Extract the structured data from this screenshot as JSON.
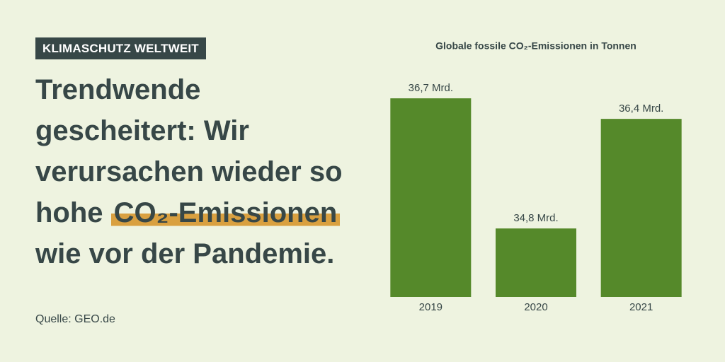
{
  "tag": "KLIMASCHUTZ WELTWEIT",
  "headline": {
    "lines": [
      "Trendwende",
      "gescheitert: Wir",
      "verursachen wieder so",
      {
        "text": "hohe",
        "highlight": "CO₂-Emissionen"
      },
      "wie vor der Pandemie."
    ]
  },
  "source": "Quelle: GEO.de",
  "chart_data": {
    "type": "bar",
    "title": "Globale fossile CO₂-Emissionen in Tonnen",
    "categories": [
      "2019",
      "2020",
      "2021"
    ],
    "values": [
      36.7,
      34.8,
      36.4
    ],
    "value_labels": [
      "36,7 Mrd.",
      "34,8 Mrd.",
      "36,4 Mrd."
    ],
    "color": "#55892a",
    "ylim": [
      33.8,
      37.0
    ]
  }
}
